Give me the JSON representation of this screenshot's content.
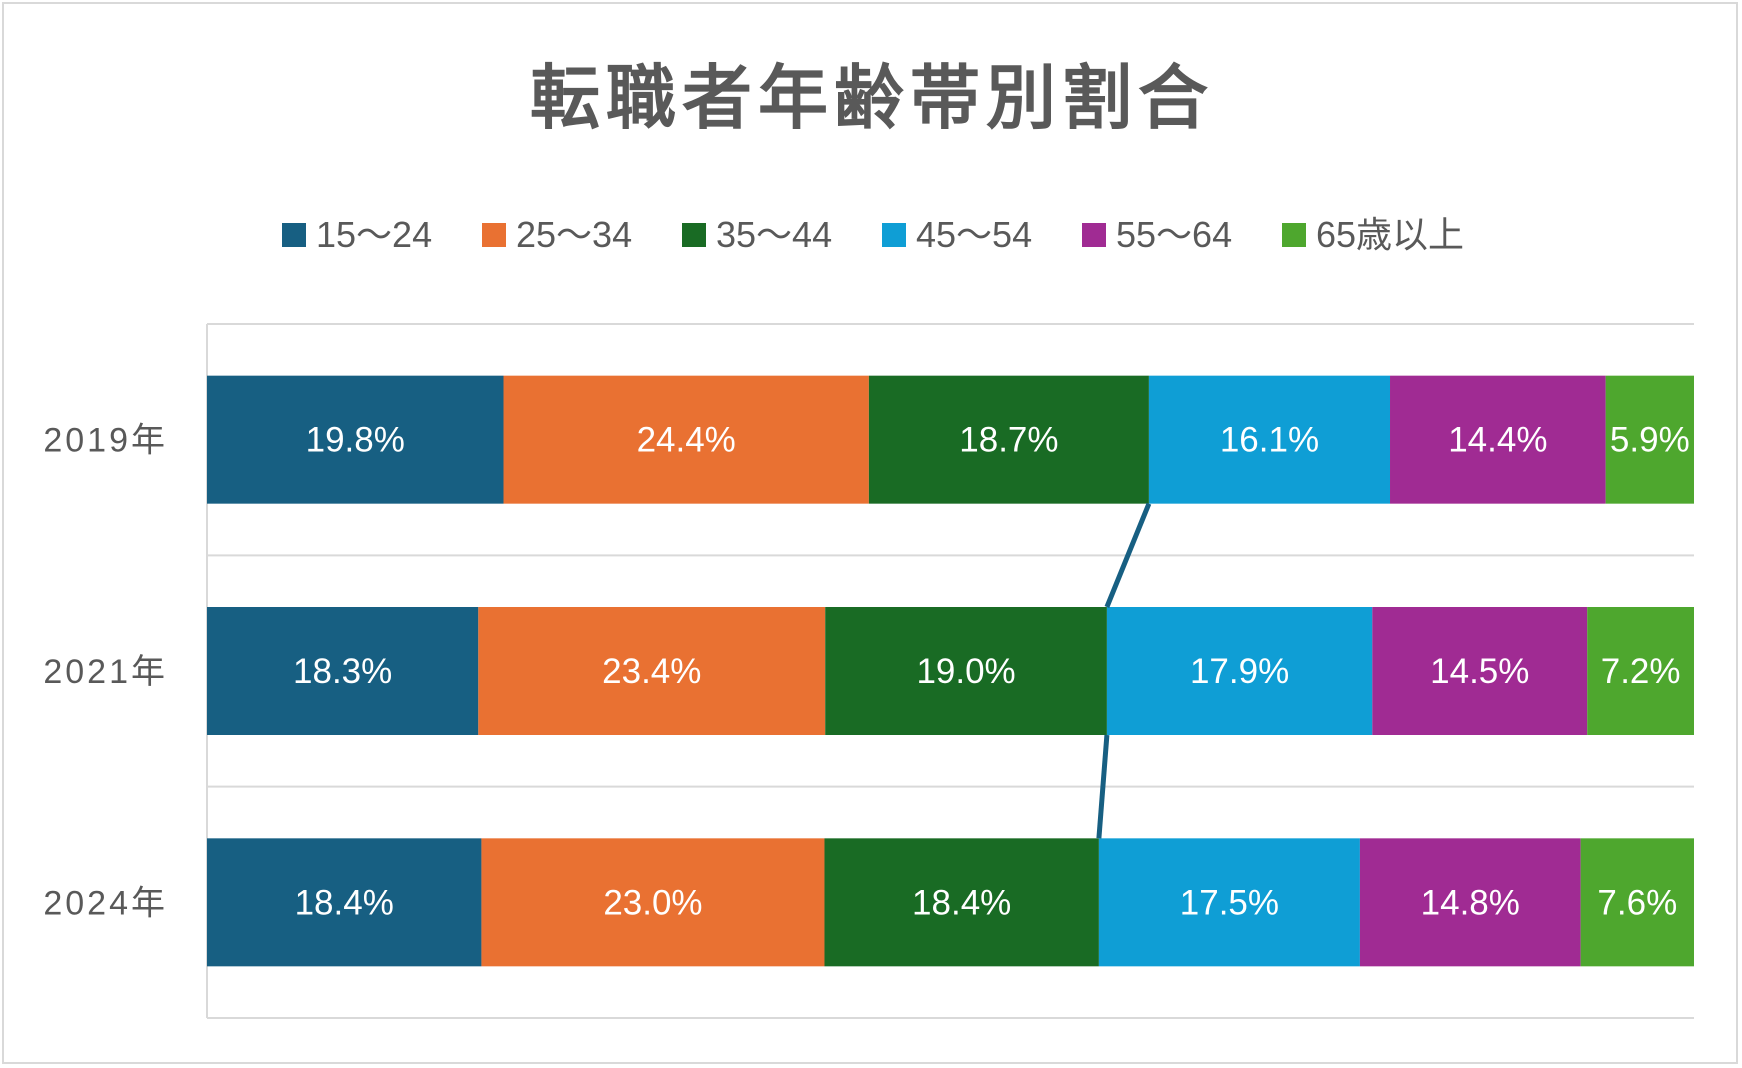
{
  "chart_data": {
    "type": "bar",
    "orientation": "horizontal",
    "stacked": "percent",
    "title": "転職者年齢帯別割合",
    "categories": [
      "2019年",
      "2021年",
      "2024年"
    ],
    "series": [
      {
        "name": "15～24",
        "color": "#175f82",
        "values": [
          19.8,
          18.3,
          18.4
        ],
        "labels": [
          "19.8%",
          "18.3%",
          "18.4%"
        ]
      },
      {
        "name": "25～34",
        "color": "#e97132",
        "values": [
          24.4,
          23.4,
          23.0
        ],
        "labels": [
          "24.4%",
          "23.4%",
          "23.0%"
        ]
      },
      {
        "name": "35～44",
        "color": "#196b24",
        "values": [
          18.7,
          19.0,
          18.4
        ],
        "labels": [
          "18.7%",
          "19.0%",
          "18.4%"
        ]
      },
      {
        "name": "45～54",
        "color": "#0f9ed5",
        "values": [
          16.1,
          17.9,
          17.5
        ],
        "labels": [
          "16.1%",
          "17.9%",
          "17.5%"
        ]
      },
      {
        "name": "55～64",
        "color": "#a02b93",
        "values": [
          14.4,
          14.5,
          14.8
        ],
        "labels": [
          "14.4%",
          "14.5%",
          "14.8%"
        ]
      },
      {
        "name": "65歳以上",
        "color": "#4ea72e",
        "values": [
          5.9,
          7.2,
          7.6
        ],
        "labels": [
          "5.9%",
          "7.2%",
          "7.6%"
        ]
      }
    ],
    "xlim": [
      0,
      100
    ],
    "legend_position": "top",
    "gridlines": true,
    "series_lines": {
      "between": [
        "35～44",
        "45～54"
      ],
      "color": "#175f82"
    }
  }
}
